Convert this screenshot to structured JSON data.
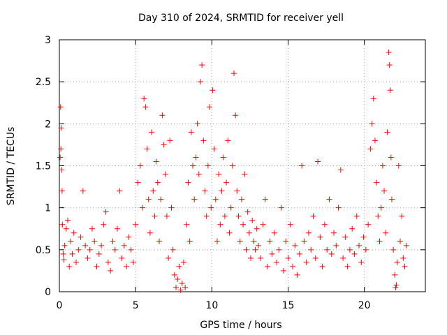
{
  "chart_data": {
    "type": "scatter",
    "title": "Day 310 of 2024, SRMTID for receiver yell",
    "xlabel": "GPS time / hours",
    "ylabel": "SRMTID / TECUs",
    "xlim": [
      0,
      24
    ],
    "ylim": [
      0,
      3
    ],
    "xticks": [
      0,
      5,
      10,
      15,
      20
    ],
    "xtick_labels": [
      "0",
      "5",
      "10",
      "15",
      "20"
    ],
    "yticks": [
      0,
      0.5,
      1,
      1.5,
      2,
      2.5,
      3
    ],
    "ytick_labels": [
      "0",
      "0.5",
      "1",
      "1.5",
      "2",
      "2.5",
      "3"
    ],
    "grid": true,
    "marker": "+",
    "series": [
      {
        "name": "SRMTID",
        "color": "#ff0000",
        "points": [
          [
            0.05,
            1.6
          ],
          [
            0.08,
            2.2
          ],
          [
            0.1,
            1.7
          ],
          [
            0.12,
            1.95
          ],
          [
            0.15,
            1.45
          ],
          [
            0.18,
            1.2
          ],
          [
            0.2,
            0.8
          ],
          [
            0.25,
            0.45
          ],
          [
            0.3,
            0.38
          ],
          [
            0.35,
            0.55
          ],
          [
            0.45,
            0.75
          ],
          [
            0.55,
            0.85
          ],
          [
            0.65,
            0.3
          ],
          [
            0.75,
            0.6
          ],
          [
            0.85,
            0.45
          ],
          [
            0.95,
            0.7
          ],
          [
            1.1,
            0.35
          ],
          [
            1.25,
            0.5
          ],
          [
            1.4,
            0.65
          ],
          [
            1.55,
            1.2
          ],
          [
            1.7,
            0.55
          ],
          [
            1.85,
            0.4
          ],
          [
            2.0,
            0.5
          ],
          [
            2.15,
            0.75
          ],
          [
            2.3,
            0.6
          ],
          [
            2.45,
            0.3
          ],
          [
            2.6,
            0.45
          ],
          [
            2.75,
            0.55
          ],
          [
            2.9,
            0.8
          ],
          [
            3.05,
            0.95
          ],
          [
            3.2,
            0.35
          ],
          [
            3.35,
            0.25
          ],
          [
            3.5,
            0.6
          ],
          [
            3.65,
            0.5
          ],
          [
            3.8,
            0.75
          ],
          [
            3.95,
            1.2
          ],
          [
            4.1,
            0.4
          ],
          [
            4.25,
            0.55
          ],
          [
            4.4,
            0.3
          ],
          [
            4.55,
            0.65
          ],
          [
            4.7,
            0.5
          ],
          [
            4.85,
            0.35
          ],
          [
            5.0,
            0.8
          ],
          [
            5.15,
            1.3
          ],
          [
            5.3,
            1.5
          ],
          [
            5.45,
            1.0
          ],
          [
            5.55,
            2.3
          ],
          [
            5.65,
            2.2
          ],
          [
            5.75,
            1.7
          ],
          [
            5.85,
            1.1
          ],
          [
            5.95,
            0.7
          ],
          [
            6.05,
            1.9
          ],
          [
            6.15,
            1.2
          ],
          [
            6.25,
            0.9
          ],
          [
            6.35,
            1.55
          ],
          [
            6.45,
            1.3
          ],
          [
            6.55,
            0.6
          ],
          [
            6.65,
            1.1
          ],
          [
            6.75,
            2.1
          ],
          [
            6.85,
            1.75
          ],
          [
            6.95,
            1.4
          ],
          [
            7.05,
            0.9
          ],
          [
            7.15,
            0.4
          ],
          [
            7.25,
            1.8
          ],
          [
            7.35,
            1.0
          ],
          [
            7.45,
            0.5
          ],
          [
            7.55,
            0.2
          ],
          [
            7.65,
            0.05
          ],
          [
            7.75,
            0.15
          ],
          [
            7.85,
            0.3
          ],
          [
            7.95,
            0.02
          ],
          [
            8.05,
            0.1
          ],
          [
            8.15,
            0.35
          ],
          [
            8.25,
            0.05
          ],
          [
            8.35,
            0.8
          ],
          [
            8.45,
            1.3
          ],
          [
            8.55,
            0.6
          ],
          [
            8.65,
            1.9
          ],
          [
            8.75,
            1.5
          ],
          [
            8.85,
            1.1
          ],
          [
            8.95,
            1.6
          ],
          [
            9.05,
            2.0
          ],
          [
            9.15,
            1.4
          ],
          [
            9.25,
            2.5
          ],
          [
            9.35,
            2.7
          ],
          [
            9.45,
            1.8
          ],
          [
            9.55,
            1.2
          ],
          [
            9.65,
            0.9
          ],
          [
            9.75,
            1.5
          ],
          [
            9.85,
            2.2
          ],
          [
            9.95,
            1.0
          ],
          [
            10.05,
            2.4
          ],
          [
            10.15,
            1.7
          ],
          [
            10.25,
            1.1
          ],
          [
            10.35,
            0.6
          ],
          [
            10.45,
            1.4
          ],
          [
            10.55,
            0.8
          ],
          [
            10.65,
            1.2
          ],
          [
            10.75,
            1.6
          ],
          [
            10.85,
            0.9
          ],
          [
            10.95,
            1.3
          ],
          [
            11.05,
            1.8
          ],
          [
            11.15,
            0.7
          ],
          [
            11.25,
            1.0
          ],
          [
            11.35,
            1.5
          ],
          [
            11.45,
            2.6
          ],
          [
            11.55,
            2.1
          ],
          [
            11.65,
            1.2
          ],
          [
            11.75,
            0.9
          ],
          [
            11.85,
            0.6
          ],
          [
            11.95,
            1.1
          ],
          [
            12.05,
            0.8
          ],
          [
            12.15,
            1.4
          ],
          [
            12.25,
            0.5
          ],
          [
            12.35,
            0.95
          ],
          [
            12.45,
            0.7
          ],
          [
            12.55,
            0.4
          ],
          [
            12.65,
            0.85
          ],
          [
            12.75,
            0.6
          ],
          [
            12.85,
            0.5
          ],
          [
            12.95,
            0.75
          ],
          [
            13.05,
            0.55
          ],
          [
            13.2,
            0.4
          ],
          [
            13.35,
            0.8
          ],
          [
            13.5,
            1.1
          ],
          [
            13.65,
            0.3
          ],
          [
            13.8,
            0.6
          ],
          [
            13.95,
            0.45
          ],
          [
            14.1,
            0.7
          ],
          [
            14.25,
            0.35
          ],
          [
            14.4,
            0.5
          ],
          [
            14.55,
            1.0
          ],
          [
            14.7,
            0.25
          ],
          [
            14.85,
            0.6
          ],
          [
            15.0,
            0.4
          ],
          [
            15.15,
            0.8
          ],
          [
            15.3,
            0.3
          ],
          [
            15.45,
            0.55
          ],
          [
            15.6,
            0.2
          ],
          [
            15.75,
            0.45
          ],
          [
            15.9,
            1.5
          ],
          [
            16.05,
            0.6
          ],
          [
            16.2,
            0.35
          ],
          [
            16.35,
            0.7
          ],
          [
            16.5,
            0.5
          ],
          [
            16.65,
            0.9
          ],
          [
            16.8,
            0.4
          ],
          [
            16.95,
            1.55
          ],
          [
            17.1,
            0.65
          ],
          [
            17.25,
            0.3
          ],
          [
            17.4,
            0.8
          ],
          [
            17.55,
            0.5
          ],
          [
            17.7,
            1.1
          ],
          [
            17.85,
            0.45
          ],
          [
            18.0,
            0.7
          ],
          [
            18.15,
            0.55
          ],
          [
            18.3,
            1.0
          ],
          [
            18.45,
            1.45
          ],
          [
            18.6,
            0.4
          ],
          [
            18.75,
            0.65
          ],
          [
            18.9,
            0.3
          ],
          [
            19.05,
            0.5
          ],
          [
            19.2,
            0.75
          ],
          [
            19.35,
            0.45
          ],
          [
            19.5,
            0.9
          ],
          [
            19.65,
            0.55
          ],
          [
            19.8,
            0.35
          ],
          [
            19.95,
            0.65
          ],
          [
            20.1,
            0.5
          ],
          [
            20.25,
            0.8
          ],
          [
            20.4,
            1.7
          ],
          [
            20.5,
            2.0
          ],
          [
            20.6,
            2.3
          ],
          [
            20.7,
            1.8
          ],
          [
            20.8,
            1.3
          ],
          [
            20.9,
            0.9
          ],
          [
            21.0,
            0.6
          ],
          [
            21.1,
            1.0
          ],
          [
            21.2,
            1.5
          ],
          [
            21.3,
            1.2
          ],
          [
            21.4,
            0.7
          ],
          [
            21.5,
            1.9
          ],
          [
            21.6,
            2.85
          ],
          [
            21.65,
            2.7
          ],
          [
            21.7,
            2.4
          ],
          [
            21.75,
            1.6
          ],
          [
            21.8,
            1.1
          ],
          [
            21.9,
            0.5
          ],
          [
            22.0,
            0.2
          ],
          [
            22.05,
            0.05
          ],
          [
            22.1,
            0.08
          ],
          [
            22.15,
            0.35
          ],
          [
            22.25,
            1.5
          ],
          [
            22.35,
            0.6
          ],
          [
            22.45,
            0.9
          ],
          [
            22.55,
            0.4
          ],
          [
            22.65,
            0.3
          ],
          [
            22.75,
            0.55
          ]
        ]
      }
    ]
  }
}
